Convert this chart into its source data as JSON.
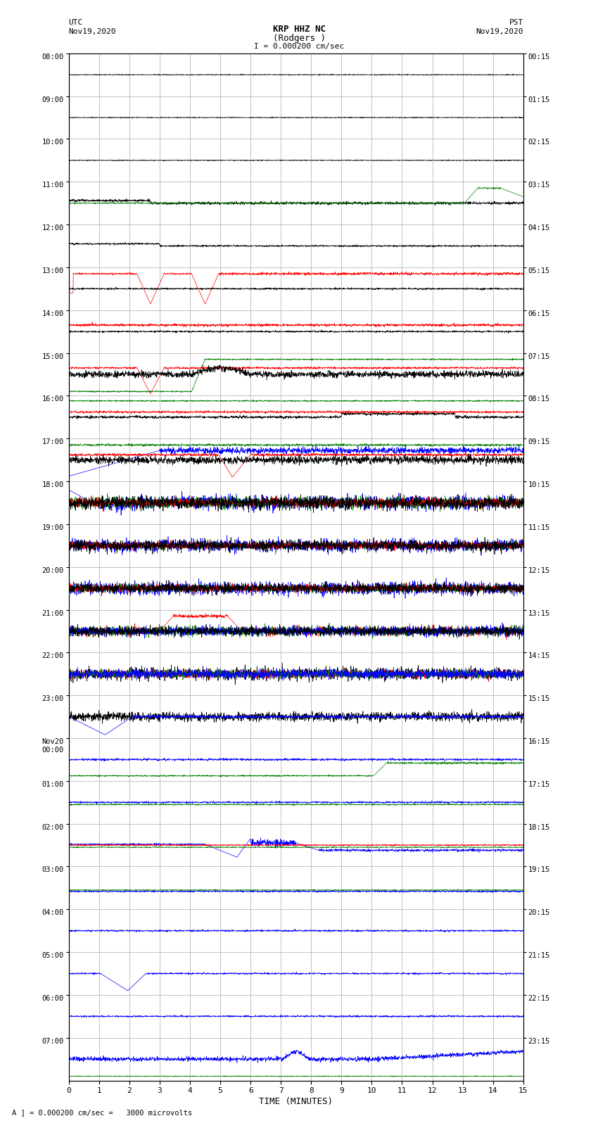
{
  "title_line1": "KRP HHZ NC",
  "title_line2": "(Rodgers )",
  "title_line3": "I = 0.000200 cm/sec",
  "label_left_top": "UTC",
  "label_left_date": "Nov19,2020",
  "label_right_top": "PST",
  "label_right_date": "Nov19,2020",
  "xlabel": "TIME (MINUTES)",
  "bottom_label": "A ] = 0.000200 cm/sec =   3000 microvolts",
  "left_yticks": [
    "08:00",
    "09:00",
    "10:00",
    "11:00",
    "12:00",
    "13:00",
    "14:00",
    "15:00",
    "16:00",
    "17:00",
    "18:00",
    "19:00",
    "20:00",
    "21:00",
    "22:00",
    "23:00",
    "Nov20\n00:00",
    "01:00",
    "02:00",
    "03:00",
    "04:00",
    "05:00",
    "06:00",
    "07:00"
  ],
  "right_yticks": [
    "00:15",
    "01:15",
    "02:15",
    "03:15",
    "04:15",
    "05:15",
    "06:15",
    "07:15",
    "08:15",
    "09:15",
    "10:15",
    "11:15",
    "12:15",
    "13:15",
    "14:15",
    "15:15",
    "16:15",
    "17:15",
    "18:15",
    "19:15",
    "20:15",
    "21:15",
    "22:15",
    "23:15"
  ],
  "xticks": [
    0,
    1,
    2,
    3,
    4,
    5,
    6,
    7,
    8,
    9,
    10,
    11,
    12,
    13,
    14,
    15
  ],
  "xlim": [
    0,
    15
  ],
  "num_rows": 24,
  "bg_color": "#ffffff",
  "grid_color": "#aaaaaa",
  "colors": {
    "black": "#000000",
    "red": "#ff0000",
    "blue": "#0000ff",
    "green": "#008000"
  }
}
